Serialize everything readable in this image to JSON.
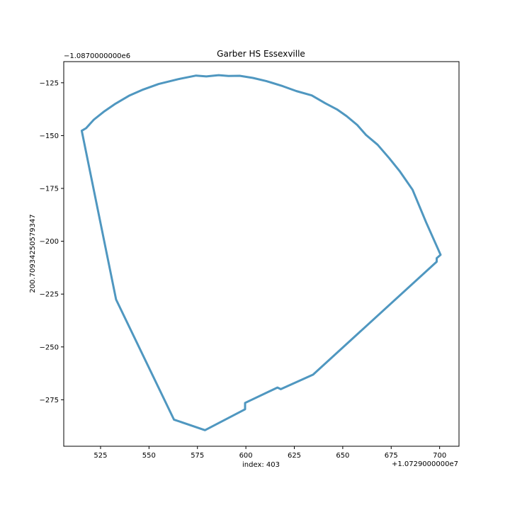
{
  "chart_data": {
    "type": "line",
    "title": "Garber HS Essexville",
    "xlabel": "index: 403",
    "ylabel": "200.70934250579347",
    "x_offset_label": "+1.0729000000e7",
    "y_offset_label": "−1.0870000000e6",
    "xlim": [
      506,
      710
    ],
    "ylim": [
      -297,
      -115
    ],
    "x_ticks": [
      525,
      550,
      575,
      600,
      625,
      650,
      675,
      700
    ],
    "x_tick_labels": [
      "525",
      "550",
      "575",
      "600",
      "625",
      "650",
      "675",
      "700"
    ],
    "y_ticks": [
      -125,
      -150,
      -175,
      -200,
      -225,
      -250,
      -275
    ],
    "y_tick_labels": [
      "−125",
      "−150",
      "−175",
      "−200",
      "−225",
      "−250",
      "−275"
    ],
    "series": [
      {
        "color": "#4f97c0",
        "points": [
          [
            515.3,
            -147.7
          ],
          [
            517.5,
            -146.5
          ],
          [
            521.5,
            -142.5
          ],
          [
            527.0,
            -138.5
          ],
          [
            532.7,
            -134.9
          ],
          [
            540.0,
            -131.0
          ],
          [
            547.0,
            -128.2
          ],
          [
            555.0,
            -125.6
          ],
          [
            565.0,
            -123.3
          ],
          [
            574.3,
            -121.6
          ],
          [
            579.6,
            -122.0
          ],
          [
            586.0,
            -121.4
          ],
          [
            591.0,
            -121.8
          ],
          [
            596.8,
            -121.7
          ],
          [
            603.6,
            -122.7
          ],
          [
            610.5,
            -124.2
          ],
          [
            619.0,
            -126.6
          ],
          [
            626.0,
            -128.9
          ],
          [
            634.0,
            -131.0
          ],
          [
            641.0,
            -134.7
          ],
          [
            647.0,
            -137.6
          ],
          [
            652.0,
            -140.8
          ],
          [
            657.5,
            -145.0
          ],
          [
            662.0,
            -149.7
          ],
          [
            668.0,
            -154.3
          ],
          [
            674.0,
            -160.7
          ],
          [
            679.5,
            -167.0
          ],
          [
            686.0,
            -175.6
          ],
          [
            693.0,
            -191.0
          ],
          [
            700.5,
            -206.4
          ],
          [
            698.5,
            -208.0
          ],
          [
            698.5,
            -209.7
          ],
          [
            634.7,
            -263.1
          ],
          [
            618.0,
            -270.0
          ],
          [
            616.3,
            -269.2
          ],
          [
            599.6,
            -276.5
          ],
          [
            599.6,
            -279.5
          ],
          [
            578.9,
            -289.4
          ],
          [
            562.9,
            -284.4
          ],
          [
            533.0,
            -227.6
          ],
          [
            515.3,
            -147.7
          ]
        ]
      }
    ],
    "grid": false
  }
}
